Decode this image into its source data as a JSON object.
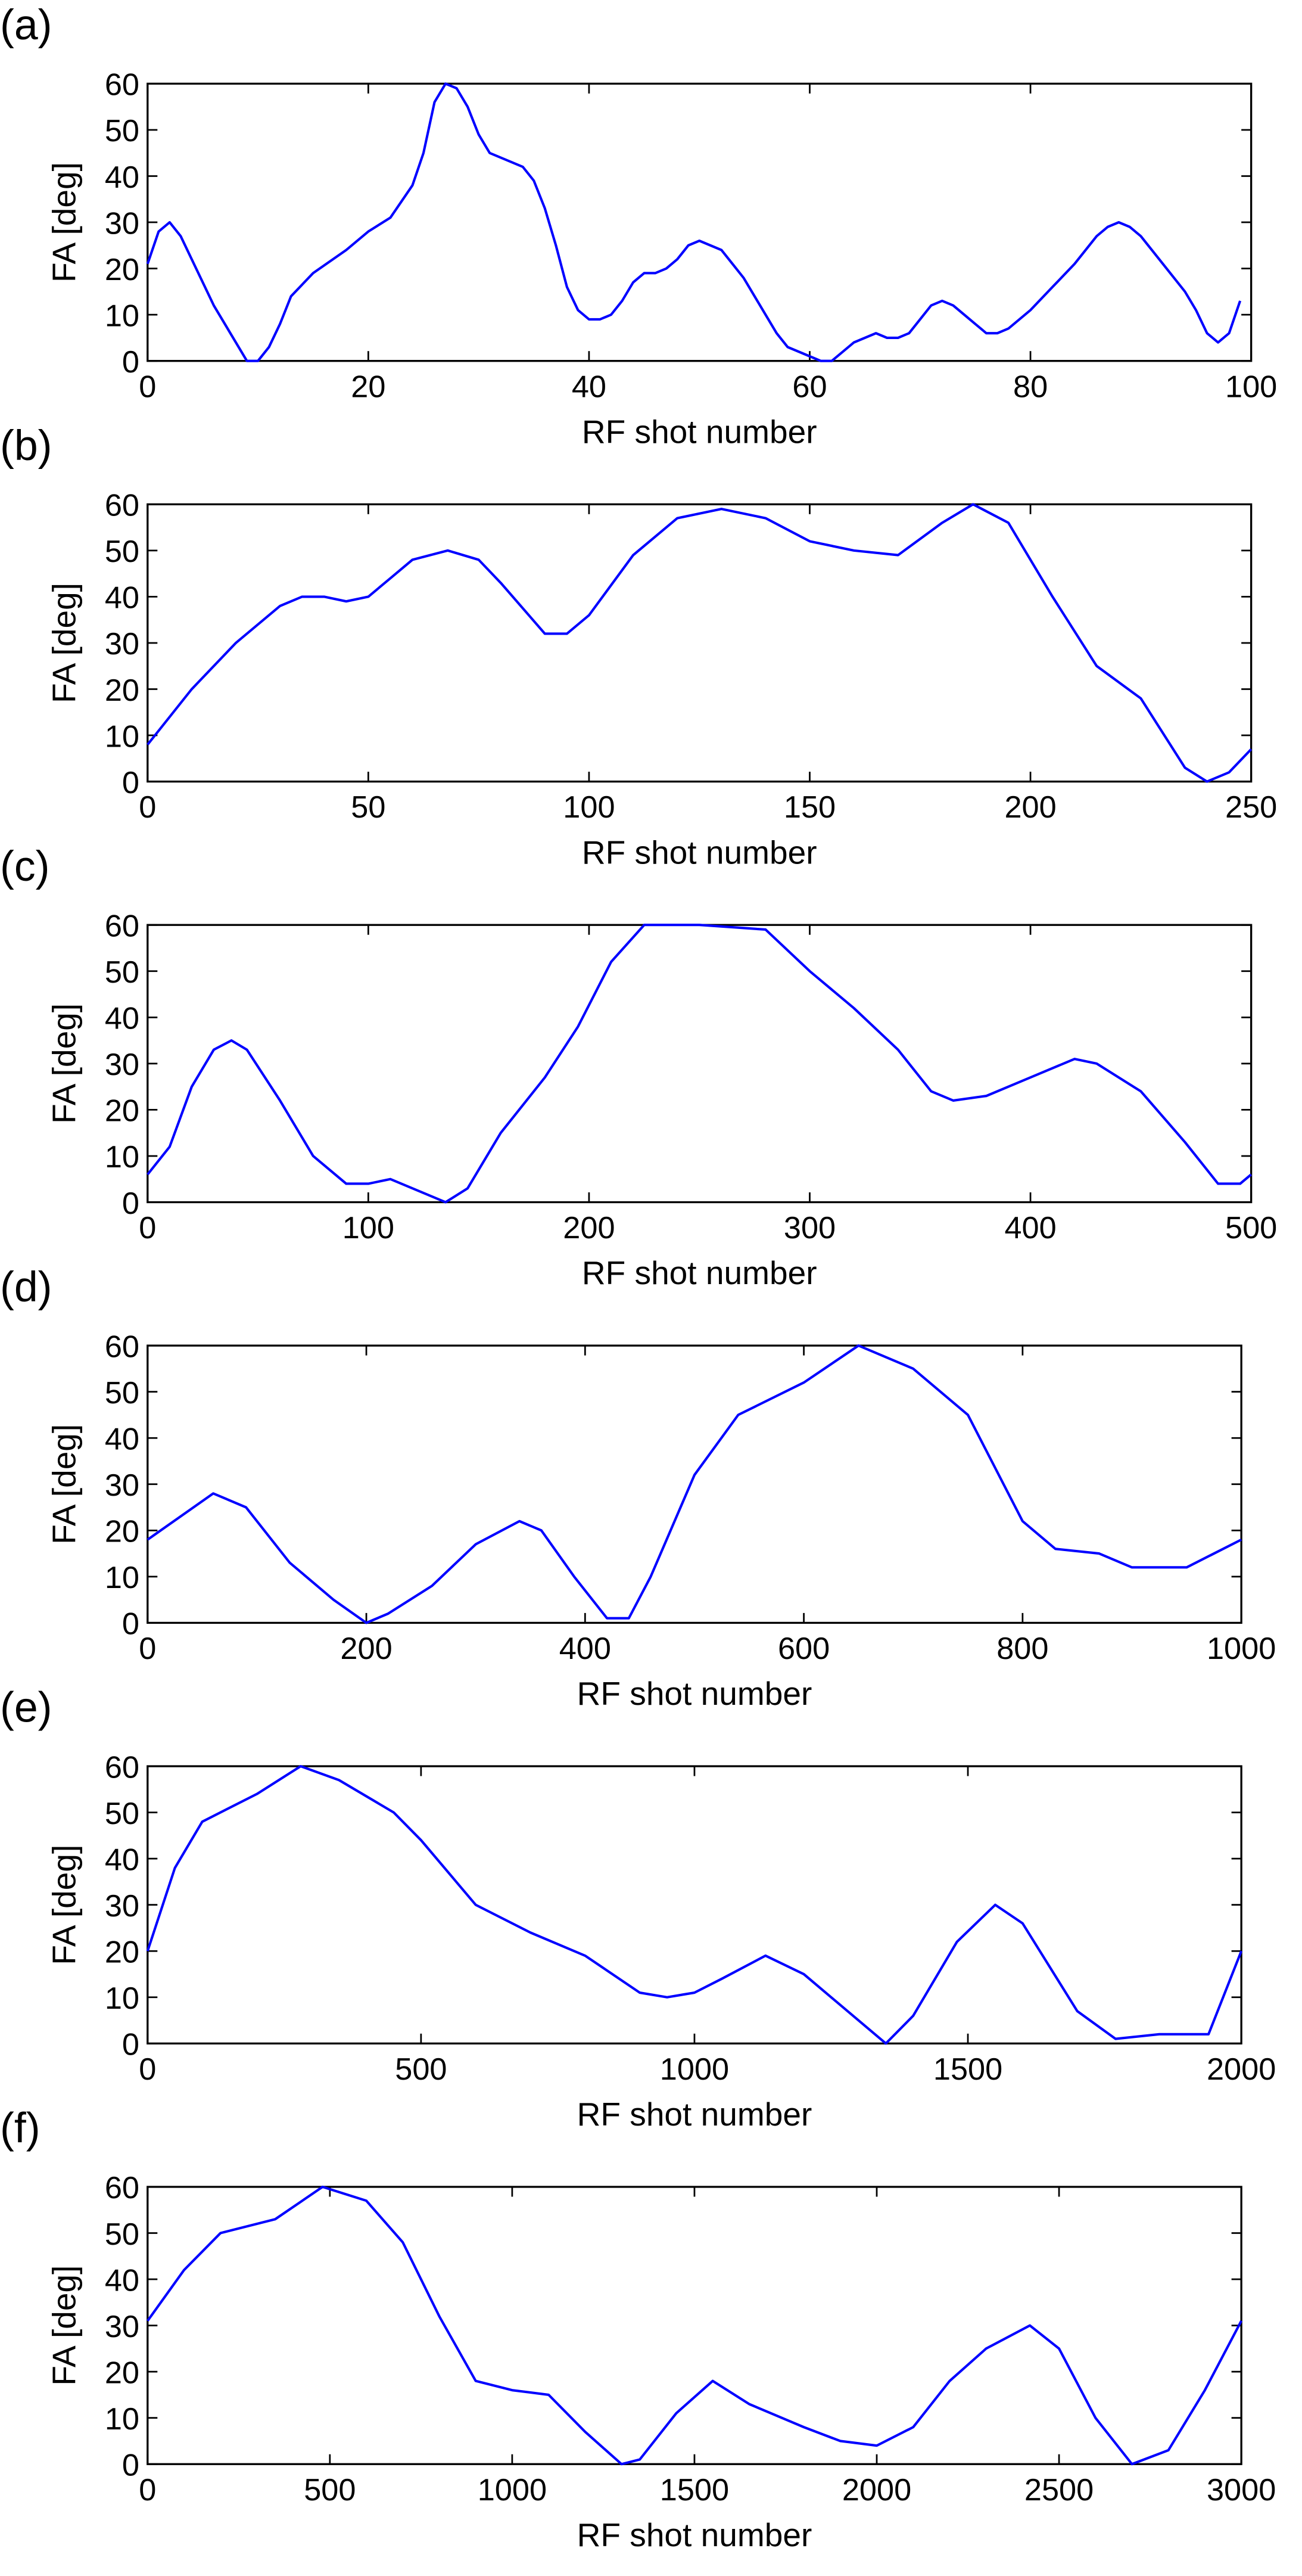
{
  "chart_data": [
    {
      "type": "line",
      "label": "(a)",
      "xlabel": "RF shot number",
      "ylabel": "FA [deg]",
      "x": [
        0,
        1,
        2,
        3,
        4,
        6,
        8,
        9,
        10,
        11,
        12,
        13,
        15,
        18,
        20,
        22,
        24,
        25,
        26,
        27,
        28,
        29,
        30,
        31,
        33,
        34,
        35,
        36,
        37,
        38,
        39,
        40,
        41,
        42,
        43,
        44,
        45,
        46,
        47,
        48,
        49,
        50,
        52,
        53,
        54,
        56,
        57,
        58,
        60,
        61,
        62,
        63,
        64,
        65,
        66,
        67,
        68,
        69,
        70,
        71,
        72,
        73,
        74,
        75,
        76,
        77,
        78,
        79,
        80,
        82,
        84,
        86,
        87,
        88,
        89,
        90,
        91,
        92,
        94,
        95,
        96,
        97,
        98,
        99
      ],
      "series": [
        {
          "color": "#0000ff",
          "values": [
            21,
            28,
            30,
            27,
            22,
            12,
            4,
            0,
            0,
            3,
            8,
            14,
            19,
            24,
            28,
            31,
            38,
            45,
            56,
            60,
            59,
            55,
            49,
            45,
            43,
            42,
            39,
            33,
            25,
            16,
            11,
            9,
            9,
            10,
            13,
            17,
            19,
            19,
            20,
            22,
            25,
            26,
            24,
            21,
            18,
            10,
            6,
            3,
            1,
            0,
            0,
            2,
            4,
            5,
            6,
            5,
            5,
            6,
            9,
            12,
            13,
            12,
            10,
            8,
            6,
            6,
            7,
            9,
            11,
            16,
            21,
            27,
            29,
            30,
            29,
            27,
            24,
            21,
            15,
            11,
            6,
            4,
            6,
            13
          ]
        }
      ],
      "xlim": [
        0,
        100
      ],
      "xticks": [
        0,
        20,
        40,
        60,
        80,
        100
      ],
      "ylim": [
        0,
        60
      ],
      "yticks": [
        0,
        10,
        20,
        30,
        40,
        50,
        60
      ]
    },
    {
      "type": "line",
      "label": "(b)",
      "xlabel": "RF shot number",
      "ylabel": "FA [deg]",
      "x": [
        0,
        10,
        20,
        30,
        35,
        40,
        45,
        50,
        55,
        60,
        68,
        75,
        80,
        90,
        95,
        100,
        110,
        120,
        130,
        140,
        150,
        160,
        170,
        180,
        187,
        195,
        205,
        215,
        225,
        235,
        240,
        245,
        250
      ],
      "series": [
        {
          "color": "#0000ff",
          "values": [
            8,
            20,
            30,
            38,
            40,
            40,
            39,
            40,
            44,
            48,
            50,
            48,
            43,
            32,
            32,
            36,
            49,
            57,
            59,
            57,
            52,
            50,
            49,
            56,
            60,
            56,
            40,
            25,
            18,
            3,
            0,
            2,
            7
          ]
        }
      ],
      "xlim": [
        0,
        250
      ],
      "xticks": [
        0,
        50,
        100,
        150,
        200,
        250
      ],
      "ylim": [
        0,
        60
      ],
      "yticks": [
        0,
        10,
        20,
        30,
        40,
        50,
        60
      ]
    },
    {
      "type": "line",
      "label": "(c)",
      "xlabel": "RF shot number",
      "ylabel": "FA [deg]",
      "x": [
        0,
        10,
        20,
        30,
        38,
        45,
        60,
        75,
        90,
        100,
        110,
        120,
        135,
        145,
        160,
        180,
        195,
        210,
        225,
        250,
        280,
        300,
        320,
        340,
        355,
        365,
        380,
        400,
        420,
        430,
        450,
        470,
        485,
        495,
        500
      ],
      "series": [
        {
          "color": "#0000ff",
          "values": [
            6,
            12,
            25,
            33,
            35,
            33,
            22,
            10,
            4,
            4,
            5,
            3,
            0,
            3,
            15,
            27,
            38,
            52,
            60,
            60,
            59,
            50,
            42,
            33,
            24,
            22,
            23,
            27,
            31,
            30,
            24,
            13,
            4,
            4,
            6
          ]
        }
      ],
      "xlim": [
        0,
        500
      ],
      "xticks": [
        0,
        100,
        200,
        300,
        400,
        500
      ],
      "ylim": [
        0,
        60
      ],
      "yticks": [
        0,
        10,
        20,
        30,
        40,
        50,
        60
      ]
    },
    {
      "type": "line",
      "label": "(d)",
      "xlabel": "RF shot number",
      "ylabel": "FA [deg]",
      "x": [
        0,
        30,
        60,
        90,
        130,
        170,
        200,
        220,
        260,
        300,
        340,
        360,
        390,
        420,
        440,
        460,
        500,
        540,
        600,
        650,
        700,
        750,
        800,
        830,
        870,
        900,
        950,
        1000
      ],
      "series": [
        {
          "color": "#0000ff",
          "values": [
            18,
            23,
            28,
            25,
            13,
            5,
            0,
            2,
            8,
            17,
            22,
            20,
            10,
            1,
            1,
            10,
            32,
            45,
            52,
            60,
            55,
            45,
            22,
            16,
            15,
            12,
            12,
            18
          ]
        }
      ],
      "xlim": [
        0,
        1000
      ],
      "xticks": [
        0,
        200,
        400,
        600,
        800,
        1000
      ],
      "ylim": [
        0,
        60
      ],
      "yticks": [
        0,
        10,
        20,
        30,
        40,
        50,
        60
      ]
    },
    {
      "type": "line",
      "label": "(e)",
      "xlabel": "RF shot number",
      "ylabel": "FA [deg]",
      "x": [
        0,
        50,
        100,
        200,
        280,
        350,
        450,
        500,
        600,
        700,
        800,
        900,
        950,
        1000,
        1050,
        1130,
        1200,
        1300,
        1350,
        1400,
        1480,
        1550,
        1600,
        1700,
        1770,
        1850,
        1940,
        2000
      ],
      "series": [
        {
          "color": "#0000ff",
          "values": [
            20,
            38,
            48,
            54,
            60,
            57,
            50,
            44,
            30,
            24,
            19,
            11,
            10,
            11,
            14,
            19,
            15,
            5,
            0,
            6,
            22,
            30,
            26,
            7,
            1,
            2,
            2,
            20
          ]
        }
      ],
      "xlim": [
        0,
        2000
      ],
      "xticks": [
        0,
        500,
        1000,
        1500,
        2000
      ],
      "ylim": [
        0,
        60
      ],
      "yticks": [
        0,
        10,
        20,
        30,
        40,
        50,
        60
      ]
    },
    {
      "type": "line",
      "label": "(f)",
      "xlabel": "RF shot number",
      "ylabel": "FA [deg]",
      "x": [
        0,
        100,
        200,
        350,
        480,
        600,
        700,
        800,
        900,
        1000,
        1100,
        1200,
        1300,
        1350,
        1450,
        1550,
        1650,
        1800,
        1900,
        2000,
        2100,
        2200,
        2300,
        2420,
        2500,
        2600,
        2700,
        2800,
        2900,
        3000
      ],
      "series": [
        {
          "color": "#0000ff",
          "values": [
            31,
            42,
            50,
            53,
            60,
            57,
            48,
            32,
            18,
            16,
            15,
            7,
            0,
            1,
            11,
            18,
            13,
            8,
            5,
            4,
            8,
            18,
            25,
            30,
            25,
            10,
            0,
            3,
            16,
            31
          ]
        }
      ],
      "xlim": [
        0,
        3000
      ],
      "xticks": [
        0,
        500,
        1000,
        1500,
        2000,
        2500,
        3000
      ],
      "ylim": [
        0,
        60
      ],
      "yticks": [
        0,
        10,
        20,
        30,
        40,
        50,
        60
      ]
    }
  ]
}
